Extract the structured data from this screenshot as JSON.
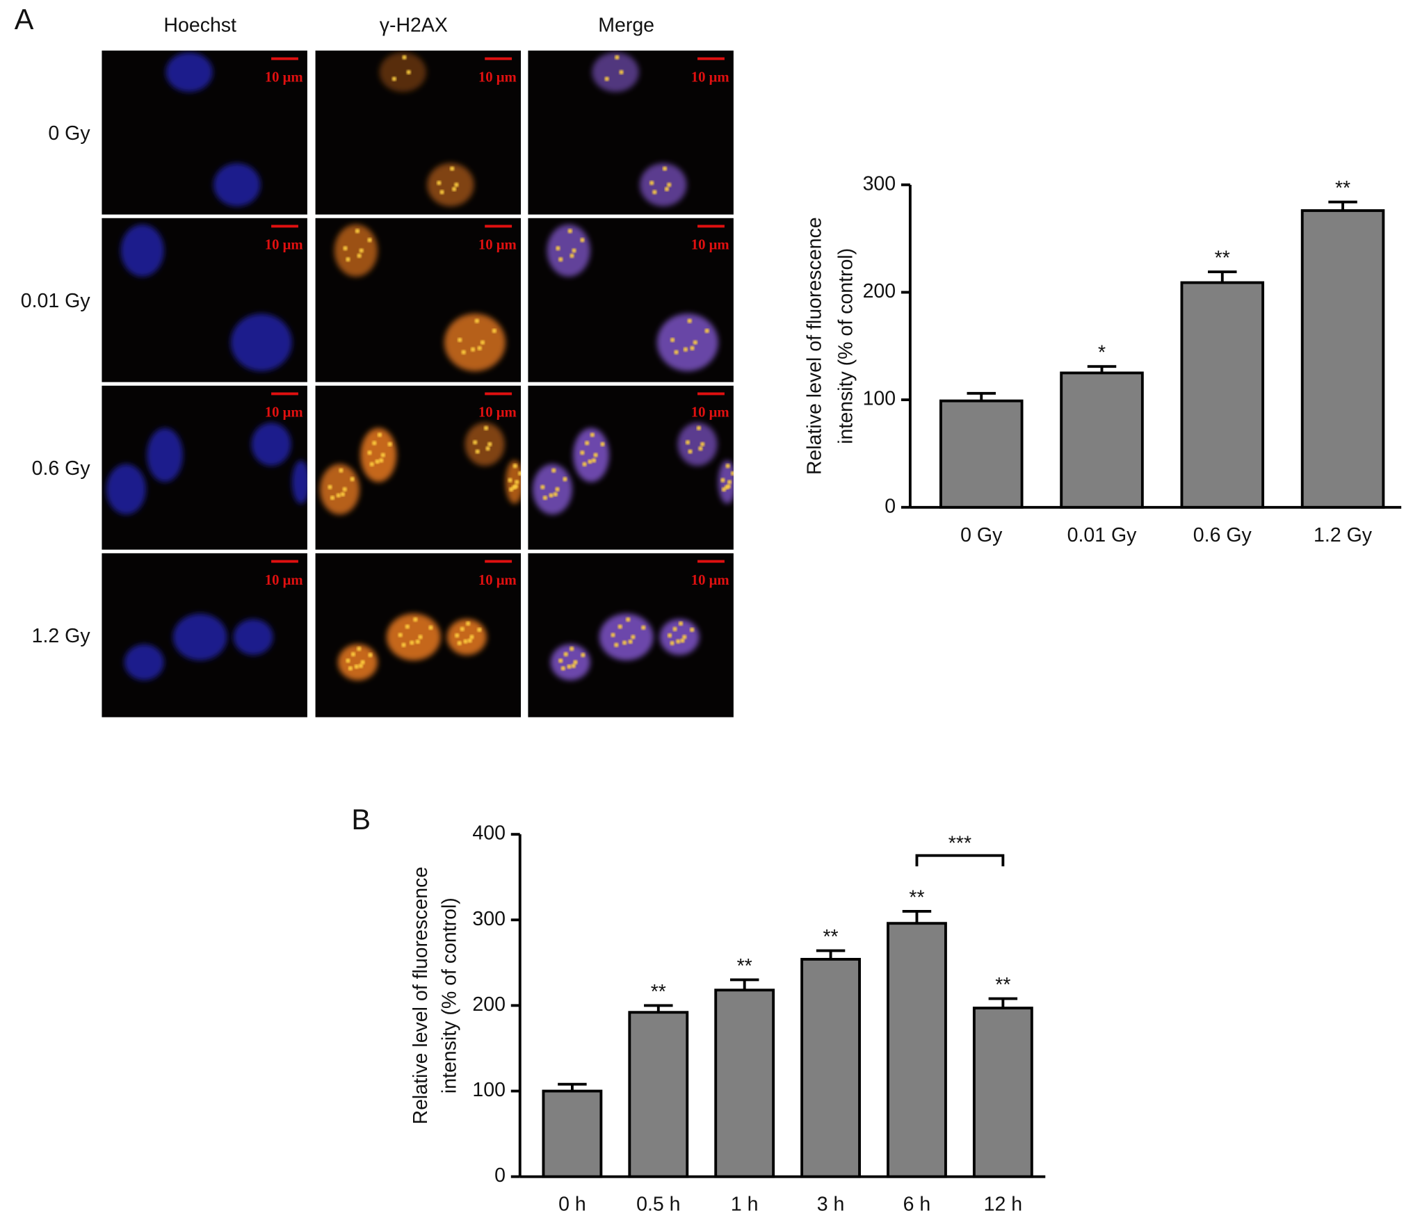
{
  "panel_a": {
    "label": "A",
    "columns": [
      "Hoechst",
      "γ-H2AX",
      "Merge"
    ],
    "rows": [
      "0 Gy",
      "0.01 Gy",
      "0.6 Gy",
      "1.2 Gy"
    ],
    "scale_bar": "10 μm"
  },
  "panel_b": {
    "label": "B"
  },
  "chart_data": [
    {
      "type": "bar",
      "ylabel": [
        "Relative level of fluorescence",
        "intensity (% of control)"
      ],
      "categories": [
        "0 Gy",
        "0.01 Gy",
        "0.6 Gy",
        "1.2 Gy"
      ],
      "values": [
        99,
        125,
        209,
        276
      ],
      "errors": [
        7,
        6,
        10,
        8
      ],
      "significance": [
        null,
        "*",
        "**",
        "**"
      ],
      "color": "#808080",
      "ylim": [
        0,
        300
      ],
      "yticks": [
        0,
        100,
        200,
        300
      ]
    },
    {
      "type": "bar",
      "ylabel": [
        "Relative level of fluorescence",
        "intensity (% of control)"
      ],
      "categories": [
        "0 h",
        "0.5 h",
        "1 h",
        "3 h",
        "6 h",
        "12 h"
      ],
      "values": [
        100,
        192,
        218,
        254,
        296,
        197
      ],
      "errors": [
        8,
        8,
        12,
        10,
        14,
        11
      ],
      "significance": [
        null,
        "**",
        "**",
        "**",
        "**",
        "**"
      ],
      "bracket": {
        "categories": [
          "6 h",
          "12 h"
        ],
        "label": "***"
      },
      "color": "#808080",
      "ylim": [
        0,
        400
      ],
      "yticks": [
        0,
        100,
        200,
        300,
        400
      ]
    }
  ]
}
